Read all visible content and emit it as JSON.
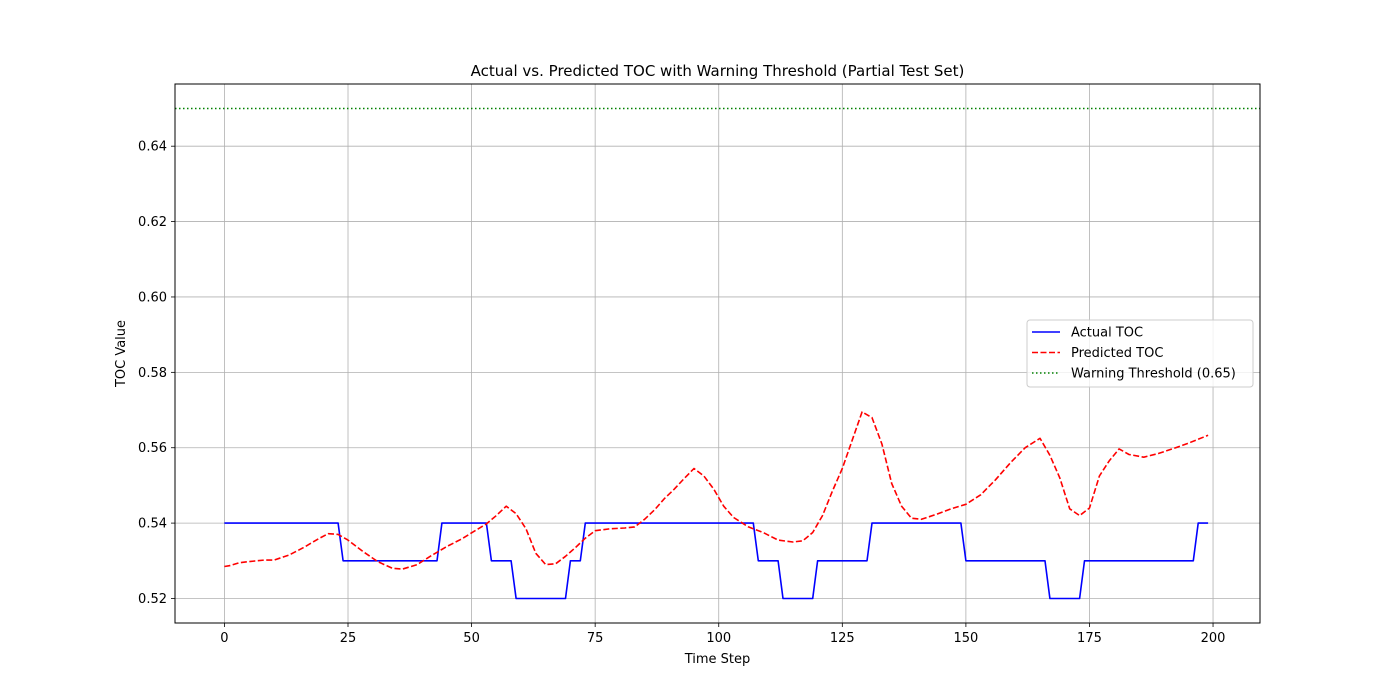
{
  "chart_data": {
    "type": "line",
    "title": "Actual vs. Predicted TOC with Warning Threshold (Partial Test Set)",
    "xlabel": "Time Step",
    "ylabel": "TOC Value",
    "xlim": [
      -10,
      209.5
    ],
    "ylim": [
      0.5135,
      0.6565
    ],
    "x_ticks": [
      0,
      25,
      50,
      75,
      100,
      125,
      150,
      175,
      200
    ],
    "y_ticks": [
      0.52,
      0.54,
      0.56,
      0.58,
      0.6,
      0.62,
      0.64
    ],
    "y_tick_labels": [
      "0.52",
      "0.54",
      "0.56",
      "0.58",
      "0.60",
      "0.62",
      "0.64"
    ],
    "grid": true,
    "legend_position": "right",
    "series": [
      {
        "name": "Actual TOC",
        "color": "#0000ff",
        "style": "solid",
        "x": [
          0,
          23,
          24,
          43,
          44,
          53,
          54,
          58,
          59,
          69,
          70,
          72,
          73,
          107,
          108,
          112,
          113,
          119,
          120,
          130,
          131,
          149,
          150,
          166,
          167,
          173,
          174,
          196,
          197,
          199
        ],
        "y": [
          0.54,
          0.54,
          0.53,
          0.53,
          0.54,
          0.54,
          0.53,
          0.53,
          0.52,
          0.52,
          0.53,
          0.53,
          0.54,
          0.54,
          0.53,
          0.53,
          0.52,
          0.52,
          0.53,
          0.53,
          0.54,
          0.54,
          0.53,
          0.53,
          0.52,
          0.52,
          0.53,
          0.53,
          0.54,
          0.54
        ]
      },
      {
        "name": "Predicted TOC",
        "color": "#ff0000",
        "style": "dashed",
        "x": [
          0,
          1,
          3,
          5,
          8,
          10,
          13,
          16,
          19,
          21,
          23,
          25,
          28,
          31,
          34,
          36,
          39,
          42,
          45,
          48,
          51,
          53,
          55,
          57,
          59,
          61,
          63,
          65,
          67,
          69,
          71,
          73,
          75,
          78,
          81,
          83,
          85,
          87,
          89,
          91,
          93,
          95,
          97,
          99,
          101,
          103,
          106,
          109,
          112,
          115,
          117,
          119,
          121,
          123,
          125,
          127,
          129,
          131,
          133,
          135,
          137,
          139,
          141,
          144,
          147,
          150,
          153,
          156,
          159,
          162,
          165,
          167,
          169,
          171,
          173,
          175,
          177,
          179,
          181,
          183,
          186,
          189,
          192,
          195,
          199
        ],
        "y": [
          0.5285,
          0.5287,
          0.5295,
          0.5298,
          0.5302,
          0.5302,
          0.5315,
          0.5335,
          0.5358,
          0.5372,
          0.537,
          0.5355,
          0.5325,
          0.5298,
          0.528,
          0.5278,
          0.529,
          0.5315,
          0.5338,
          0.5358,
          0.5382,
          0.5398,
          0.542,
          0.5445,
          0.5425,
          0.5385,
          0.532,
          0.529,
          0.5292,
          0.5312,
          0.5335,
          0.536,
          0.538,
          0.5385,
          0.5387,
          0.539,
          0.541,
          0.5435,
          0.5465,
          0.549,
          0.5518,
          0.5545,
          0.5525,
          0.549,
          0.5445,
          0.5415,
          0.539,
          0.5375,
          0.5355,
          0.535,
          0.5353,
          0.5375,
          0.542,
          0.5485,
          0.5545,
          0.562,
          0.5695,
          0.568,
          0.561,
          0.5505,
          0.5445,
          0.5413,
          0.541,
          0.5423,
          0.5438,
          0.545,
          0.5475,
          0.5515,
          0.556,
          0.56,
          0.5625,
          0.558,
          0.552,
          0.5438,
          0.542,
          0.544,
          0.5525,
          0.5565,
          0.5597,
          0.5582,
          0.5575,
          0.5585,
          0.5598,
          0.5612,
          0.5633
        ]
      },
      {
        "name": "Warning Threshold (0.65)",
        "color": "#008000",
        "style": "dotted",
        "type": "hline",
        "y": 0.65
      }
    ]
  }
}
